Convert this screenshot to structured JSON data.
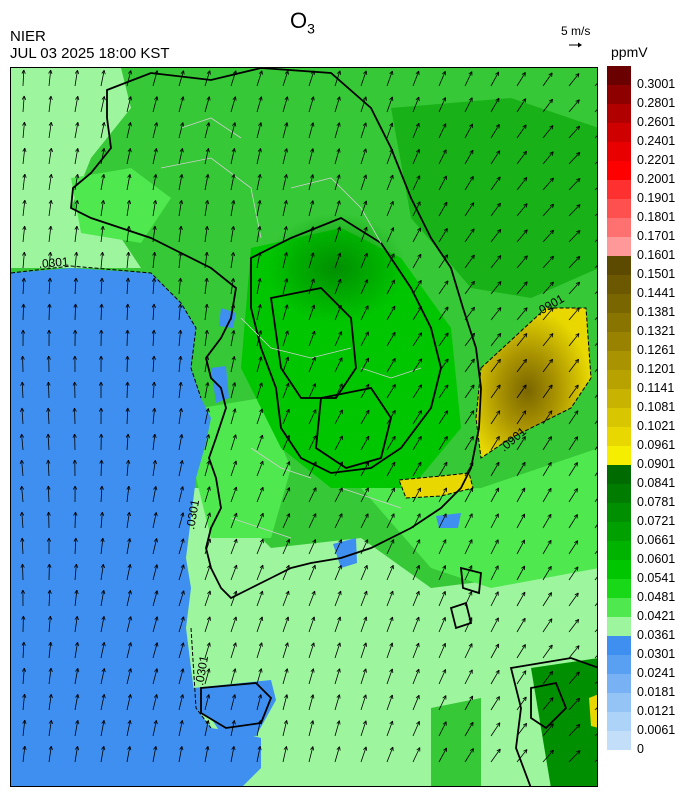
{
  "header": {
    "title_main": "O",
    "title_sub": "3",
    "agency": "NIER",
    "datetime": "JUL 03 2025 18:00 KST",
    "wind_scale": "5 m/s",
    "unit": "ppmV"
  },
  "contour_labels": [
    ".0301",
    ".0901",
    ".0901",
    ".0301",
    ".0301"
  ],
  "legend": {
    "levels": [
      {
        "label": "0.3001",
        "color": "#6a0000"
      },
      {
        "label": "0.2801",
        "color": "#8e0000"
      },
      {
        "label": "0.2601",
        "color": "#b00000"
      },
      {
        "label": "0.2401",
        "color": "#cf0000"
      },
      {
        "label": "0.2201",
        "color": "#e80000"
      },
      {
        "label": "0.2001",
        "color": "#ff0000"
      },
      {
        "label": "0.1901",
        "color": "#ff3030"
      },
      {
        "label": "0.1801",
        "color": "#ff5050"
      },
      {
        "label": "0.1701",
        "color": "#ff7070"
      },
      {
        "label": "0.1601",
        "color": "#ff9999"
      },
      {
        "label": "0.1501",
        "color": "#5c4a00"
      },
      {
        "label": "0.1441",
        "color": "#6b5800"
      },
      {
        "label": "0.1381",
        "color": "#7a6600"
      },
      {
        "label": "0.1321",
        "color": "#897400"
      },
      {
        "label": "0.1261",
        "color": "#998200"
      },
      {
        "label": "0.1201",
        "color": "#a99300"
      },
      {
        "label": "0.1141",
        "color": "#b8a200"
      },
      {
        "label": "0.1081",
        "color": "#c8b300"
      },
      {
        "label": "0.1021",
        "color": "#d8c600"
      },
      {
        "label": "0.0961",
        "color": "#e8d800"
      },
      {
        "label": "0.0901",
        "color": "#f5ee00"
      },
      {
        "label": "0.0841",
        "color": "#006b00"
      },
      {
        "label": "0.0781",
        "color": "#007d00"
      },
      {
        "label": "0.0721",
        "color": "#008f00"
      },
      {
        "label": "0.0661",
        "color": "#00a000"
      },
      {
        "label": "0.0601",
        "color": "#00b300"
      },
      {
        "label": "0.0541",
        "color": "#00c600"
      },
      {
        "label": "0.0481",
        "color": "#18d818"
      },
      {
        "label": "0.0421",
        "color": "#4fe84f"
      },
      {
        "label": "0.0361",
        "color": "#9df59d"
      },
      {
        "label": "0.0301",
        "color": "#3f8ff0"
      },
      {
        "label": "0.0241",
        "color": "#5aa0f2"
      },
      {
        "label": "0.0181",
        "color": "#78b2f4"
      },
      {
        "label": "0.0121",
        "color": "#94c4f6"
      },
      {
        "label": "0.0061",
        "color": "#aed3f8"
      },
      {
        "label": "0",
        "color": "#c2def9"
      }
    ]
  }
}
